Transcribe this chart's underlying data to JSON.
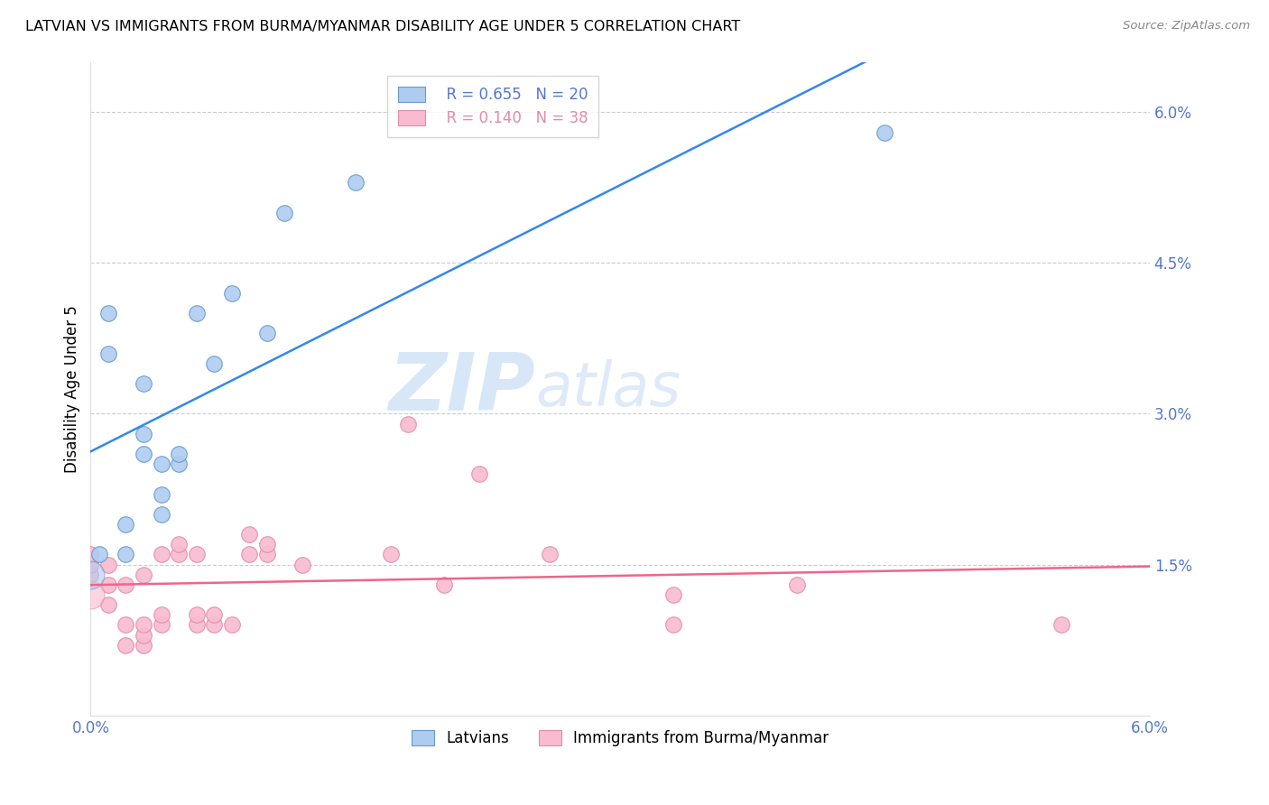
{
  "title": "LATVIAN VS IMMIGRANTS FROM BURMA/MYANMAR DISABILITY AGE UNDER 5 CORRELATION CHART",
  "source": "Source: ZipAtlas.com",
  "ylabel": "Disability Age Under 5",
  "xlim": [
    0.0,
    0.06
  ],
  "ylim": [
    0.0,
    0.065
  ],
  "ytick_vals": [
    0.0,
    0.015,
    0.03,
    0.045,
    0.06
  ],
  "ytick_labels": [
    "",
    "1.5%",
    "3.0%",
    "4.5%",
    "6.0%"
  ],
  "xtick_vals": [
    0.0,
    0.01,
    0.02,
    0.03,
    0.04,
    0.05,
    0.06
  ],
  "xtick_labels": [
    "0.0%",
    "",
    "",
    "",
    "",
    "",
    "6.0%"
  ],
  "latvian_color": "#aeccf0",
  "latvian_edge_color": "#6699cc",
  "myanmar_color": "#f8bbd0",
  "myanmar_edge_color": "#e48aaa",
  "latvian_line_color": "#3388ee",
  "myanmar_line_color": "#ee6688",
  "tick_color": "#5577cc",
  "latvians_x": [
    0.0005,
    0.001,
    0.001,
    0.002,
    0.002,
    0.003,
    0.003,
    0.003,
    0.004,
    0.004,
    0.004,
    0.005,
    0.005,
    0.006,
    0.007,
    0.008,
    0.01,
    0.011,
    0.015,
    0.045
  ],
  "latvians_y": [
    0.016,
    0.036,
    0.04,
    0.016,
    0.019,
    0.026,
    0.028,
    0.033,
    0.02,
    0.022,
    0.025,
    0.025,
    0.026,
    0.04,
    0.035,
    0.042,
    0.038,
    0.05,
    0.053,
    0.058
  ],
  "myanmar_x": [
    0.0,
    0.0,
    0.0,
    0.001,
    0.001,
    0.001,
    0.002,
    0.002,
    0.002,
    0.003,
    0.003,
    0.003,
    0.003,
    0.004,
    0.004,
    0.004,
    0.005,
    0.005,
    0.006,
    0.006,
    0.006,
    0.007,
    0.007,
    0.008,
    0.009,
    0.009,
    0.01,
    0.01,
    0.012,
    0.017,
    0.018,
    0.02,
    0.022,
    0.026,
    0.033,
    0.033,
    0.04,
    0.055
  ],
  "myanmar_y": [
    0.014,
    0.015,
    0.016,
    0.011,
    0.013,
    0.015,
    0.007,
    0.009,
    0.013,
    0.007,
    0.008,
    0.009,
    0.014,
    0.009,
    0.01,
    0.016,
    0.016,
    0.017,
    0.009,
    0.01,
    0.016,
    0.009,
    0.01,
    0.009,
    0.016,
    0.018,
    0.016,
    0.017,
    0.015,
    0.016,
    0.029,
    0.013,
    0.024,
    0.016,
    0.009,
    0.012,
    0.013,
    0.009
  ]
}
